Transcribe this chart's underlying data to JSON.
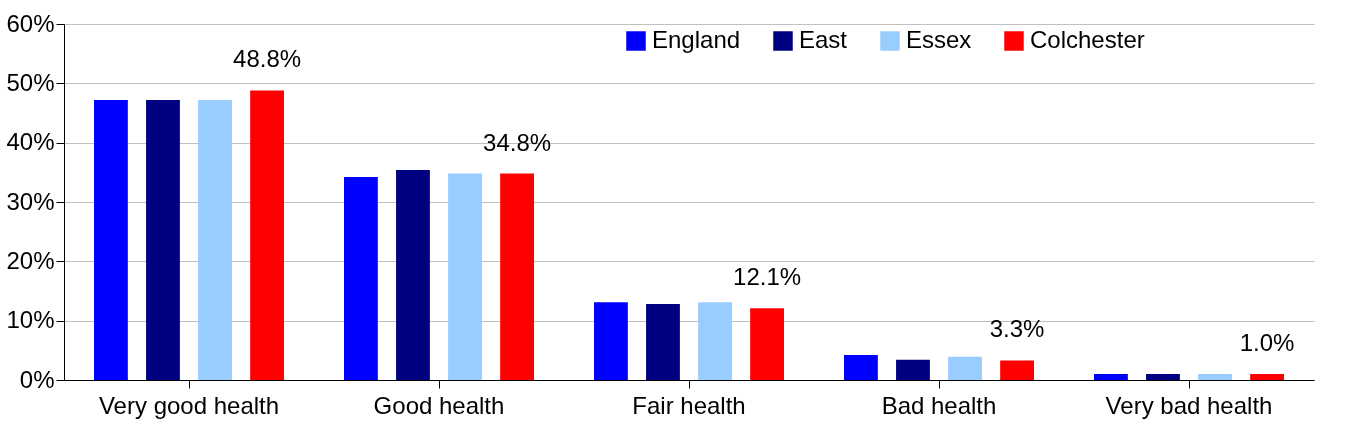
{
  "chart_data": {
    "type": "bar",
    "categories": [
      "Very good health",
      "Good health",
      "Fair health",
      "Bad health",
      "Very bad health"
    ],
    "series": [
      {
        "name": "England",
        "color": "#0000ff",
        "values": [
          47.2,
          34.2,
          13.1,
          4.2,
          1.0
        ]
      },
      {
        "name": "East",
        "color": "#000080",
        "values": [
          47.2,
          35.4,
          12.8,
          3.4,
          1.0
        ]
      },
      {
        "name": "Essex",
        "color": "#99ccff",
        "values": [
          47.2,
          34.8,
          13.1,
          3.9,
          1.0
        ]
      },
      {
        "name": "Colchester",
        "color": "#ff0000",
        "values": [
          48.8,
          34.8,
          12.1,
          3.3,
          1.0
        ],
        "value_labels": [
          "48.8%",
          "34.8%",
          "12.1%",
          "3.3%",
          "1.0%"
        ]
      }
    ],
    "ylim": [
      0,
      60
    ],
    "yticks": [
      {
        "value": 0,
        "label": "0%"
      },
      {
        "value": 10,
        "label": "10%"
      },
      {
        "value": 20,
        "label": "20%"
      },
      {
        "value": 30,
        "label": "30%"
      },
      {
        "value": 40,
        "label": "40%"
      },
      {
        "value": 50,
        "label": "50%"
      },
      {
        "value": 60,
        "label": "60%"
      }
    ],
    "grid": "y",
    "legend": "top right"
  }
}
